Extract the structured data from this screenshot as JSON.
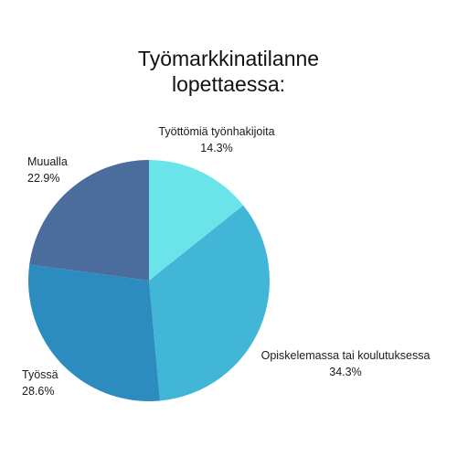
{
  "chart_data": {
    "type": "pie",
    "title_lines": [
      "Työmarkkinatilanne",
      "lopettaessa:"
    ],
    "slices": [
      {
        "label": "Työttömiä työnhakijoita",
        "value": 14.3,
        "percent_label": "14.3%",
        "color": "#6ae4e8"
      },
      {
        "label": "Opiskelemassa tai koulutuksessa",
        "value": 34.3,
        "percent_label": "34.3%",
        "color": "#41b6d6"
      },
      {
        "label": "Työssä",
        "value": 28.6,
        "percent_label": "28.6%",
        "color": "#2d8cbf"
      },
      {
        "label": "Muualla",
        "value": 22.9,
        "percent_label": "22.9%",
        "color": "#4a6d9e"
      }
    ],
    "start_angle_deg": 0,
    "direction": "clockwise",
    "legend": "none"
  }
}
